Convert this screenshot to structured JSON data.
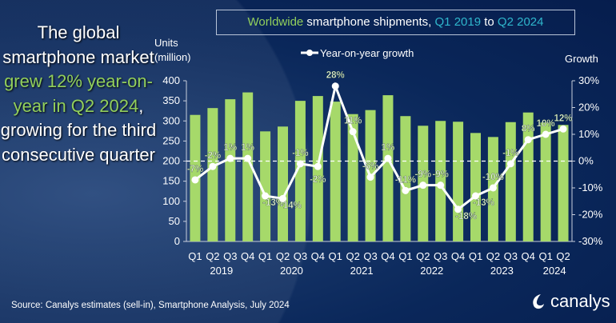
{
  "headline": {
    "parts": [
      {
        "text": "The global smartphone market ",
        "accent": false
      },
      {
        "text": "grew 12% year-on-year in Q2 2024",
        "accent": true
      },
      {
        "text": ", growing for the third consecutive quarter",
        "accent": false
      }
    ]
  },
  "title": {
    "p1": "Worldwide",
    "p2": " smartphone shipments, ",
    "p3": "Q1 2019",
    "p4": " to ",
    "p5": "Q2 2024"
  },
  "source": "Source: Canalys estimates (sell-in), Smartphone Analysis, July 2024",
  "logo": "canalys",
  "colors": {
    "bar": "#a6d96a",
    "line": "#ffffff",
    "accent_green": "#92cf5c",
    "accent_cyan": "#2fb6cc"
  },
  "chart_data": {
    "type": "bar+line",
    "title": "Worldwide smartphone shipments, Q1 2019 to Q2 2024",
    "ylabel": "Units (million)",
    "y2label": "Growth",
    "ylim": [
      0,
      400
    ],
    "yticks": [
      0,
      50,
      100,
      150,
      200,
      250,
      300,
      350,
      400
    ],
    "y2lim": [
      -30,
      30
    ],
    "y2ticks": [
      "-30%",
      "-20%",
      "-10%",
      "0%",
      "10%",
      "20%",
      "30%"
    ],
    "categories": [
      "Q1",
      "Q2",
      "Q3",
      "Q4",
      "Q1",
      "Q2",
      "Q3",
      "Q4",
      "Q1",
      "Q2",
      "Q3",
      "Q4",
      "Q1",
      "Q2",
      "Q3",
      "Q4",
      "Q1",
      "Q2",
      "Q3",
      "Q4",
      "Q1",
      "Q2"
    ],
    "years": [
      "2019",
      "2020",
      "2021",
      "2022",
      "2023",
      "2024"
    ],
    "series": [
      {
        "type": "bar",
        "values": [
          315,
          332,
          354,
          371,
          274,
          286,
          350,
          362,
          348,
          317,
          327,
          364,
          312,
          288,
          300,
          298,
          270,
          260,
          297,
          321,
          296,
          290
        ]
      },
      {
        "type": "line",
        "name": "Year-on-year growth",
        "values": [
          -7,
          -2,
          1,
          1,
          -13,
          -14,
          -1,
          -2,
          28,
          11,
          -6,
          1,
          -11,
          -9,
          -9,
          -18,
          -13,
          -10,
          -1,
          8,
          10,
          12
        ],
        "labels": [
          "-7%",
          "-2%",
          "1%",
          "1%",
          "-13%",
          "-14%",
          "-1%",
          "-2%",
          "28%",
          "11%",
          "-6%",
          "1%",
          "-11%",
          "-9%",
          "-9%",
          "-18%",
          "-13%",
          "-10%",
          "-1%",
          "8%",
          "10%",
          "12%"
        ]
      }
    ],
    "legend": "top-center"
  }
}
